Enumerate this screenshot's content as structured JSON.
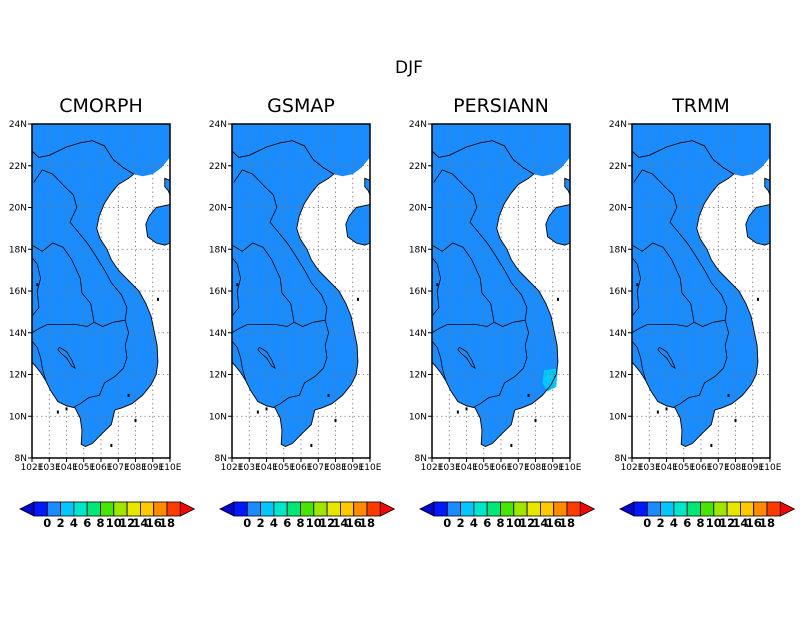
{
  "figure": {
    "main_title": "DJF"
  },
  "panels": [
    {
      "title": "CMORPH"
    },
    {
      "title": "GSMAP"
    },
    {
      "title": "PERSIANN"
    },
    {
      "title": "TRMM"
    }
  ],
  "lat_ticks": [
    "8N",
    "10N",
    "12N",
    "14N",
    "16N",
    "18N",
    "20N",
    "22N",
    "24N"
  ],
  "lon_ticks": [
    "102E",
    "103E",
    "104E",
    "105E",
    "106E",
    "107E",
    "108E",
    "109E",
    "110E"
  ],
  "colorbar": {
    "labels": [
      "0",
      "2",
      "4",
      "6",
      "8",
      "10",
      "12",
      "14",
      "16",
      "18"
    ],
    "colors": [
      "#0018ff",
      "#1a8cff",
      "#00c8ff",
      "#00e6c8",
      "#00e678",
      "#46e600",
      "#a0e600",
      "#e6e600",
      "#ffc800",
      "#ff8c00",
      "#ff3c00"
    ],
    "left_triangle": "#0000cc",
    "right_triangle": "#ff0000"
  },
  "chart_data": {
    "type": "map",
    "title": "DJF",
    "region": {
      "lon_range": [
        102,
        110
      ],
      "lat_range": [
        8,
        24
      ]
    },
    "panels": [
      "CMORPH",
      "GSMAP",
      "PERSIANN",
      "TRMM"
    ],
    "fill_color": "#1a8cff",
    "grid": true
  }
}
